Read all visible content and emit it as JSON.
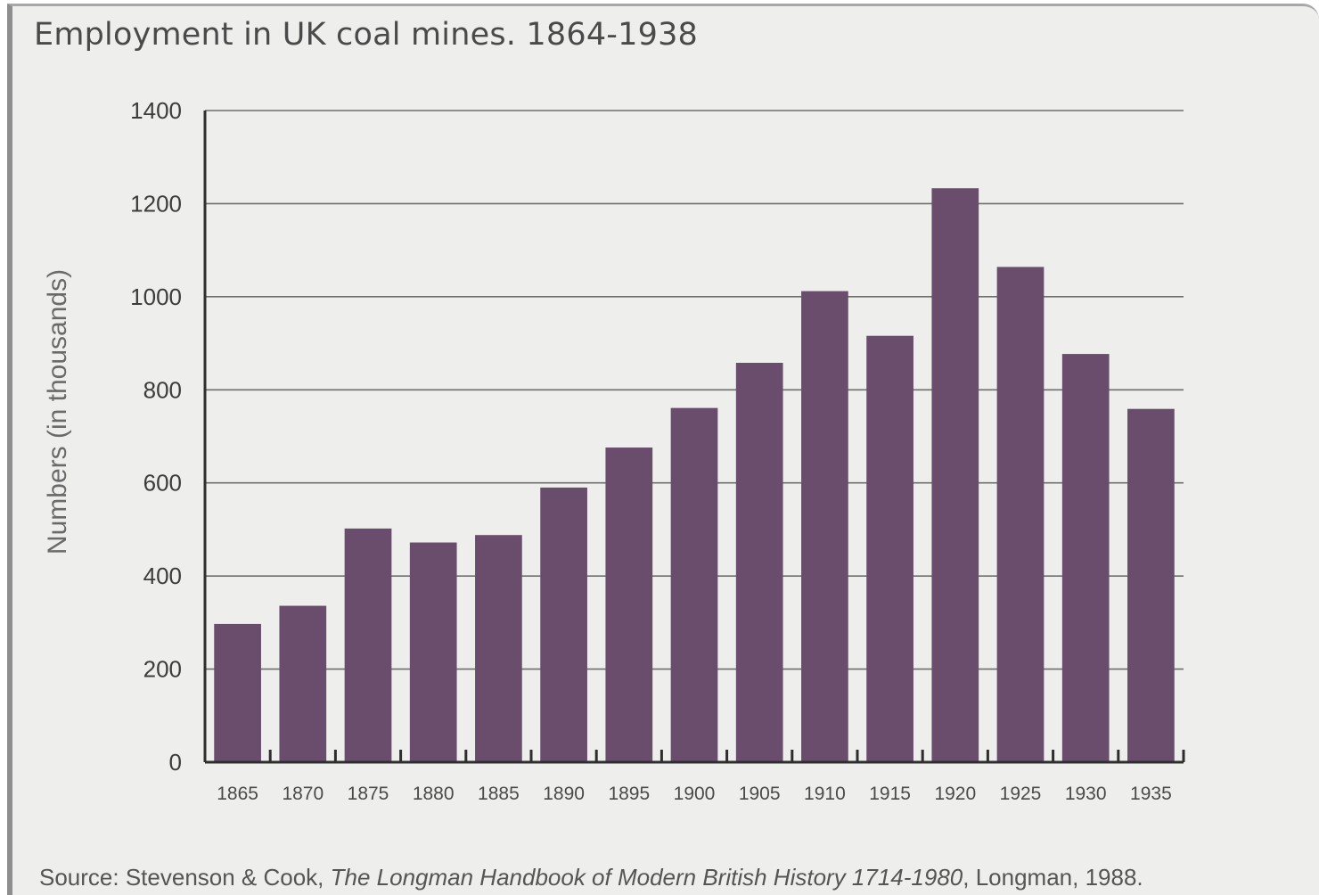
{
  "chart_data": {
    "type": "bar",
    "title": "Employment in UK coal mines. 1864-1938",
    "ylabel": "Numbers (in thousands)",
    "xlabel": "",
    "categories": [
      "1865",
      "1870",
      "1875",
      "1880",
      "1885",
      "1890",
      "1895",
      "1900",
      "1905",
      "1910",
      "1915",
      "1920",
      "1925",
      "1930",
      "1935"
    ],
    "values": [
      297,
      336,
      502,
      472,
      488,
      590,
      676,
      761,
      858,
      1012,
      916,
      1233,
      1064,
      877,
      759
    ],
    "yticks": [
      0,
      200,
      400,
      600,
      800,
      1000,
      1200,
      1400
    ],
    "ylim": [
      0,
      1400
    ],
    "grid": "horizontal",
    "bar_color": "#6a4d6c",
    "source": {
      "prefix": "Source: Stevenson & Cook, ",
      "book": "The Longman Handbook of Modern British History 1714-1980",
      "suffix": ", Longman, 1988."
    }
  }
}
